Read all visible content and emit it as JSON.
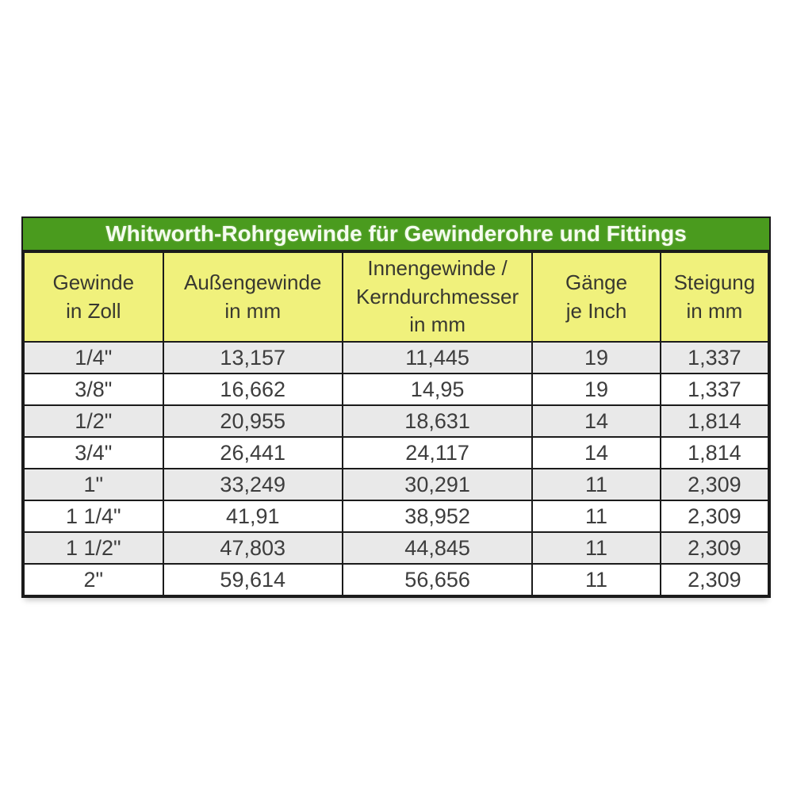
{
  "chart_data": {
    "type": "table",
    "title": "Whitworth-Rohrgewinde für Gewinderohre und Fittings",
    "columns": [
      {
        "label": "Gewinde in Zoll",
        "lines": [
          "Gewinde",
          "in Zoll"
        ]
      },
      {
        "label": "Außengewinde in mm",
        "lines": [
          "Außengewinde",
          "in mm"
        ]
      },
      {
        "label": "Innengewinde / Kerndurchmesser in mm",
        "lines": [
          "Innengewinde /",
          "Kerndurchmesser",
          "in mm"
        ]
      },
      {
        "label": "Gänge je Inch",
        "lines": [
          "Gänge",
          "je Inch"
        ]
      },
      {
        "label": "Steigung in mm",
        "lines": [
          "Steigung",
          "in mm"
        ]
      }
    ],
    "rows": [
      [
        "1/4\"",
        "13,157",
        "11,445",
        "19",
        "1,337"
      ],
      [
        "3/8\"",
        "16,662",
        "14,95",
        "19",
        "1,337"
      ],
      [
        "1/2\"",
        "20,955",
        "18,631",
        "14",
        "1,814"
      ],
      [
        "3/4\"",
        "26,441",
        "24,117",
        "14",
        "1,814"
      ],
      [
        "1\"",
        "33,249",
        "30,291",
        "11",
        "2,309"
      ],
      [
        "1 1/4\"",
        "41,91",
        "38,952",
        "11",
        "2,309"
      ],
      [
        "1 1/2\"",
        "47,803",
        "44,845",
        "11",
        "2,309"
      ],
      [
        "2\"",
        "59,614",
        "56,656",
        "11",
        "2,309"
      ]
    ],
    "layout": {
      "grid": true,
      "striped": true
    }
  },
  "colors": {
    "title_bg": "#4a9b1e",
    "title_text": "#f5fcef",
    "header_bg": "#f0f17c",
    "header_text": "#383830",
    "row_bg": "#ffffff",
    "row_alt_bg": "#e9e9e9",
    "border": "#1b1b1b",
    "cell_text": "#3d3d3d",
    "page_bg": "#ffffff"
  }
}
